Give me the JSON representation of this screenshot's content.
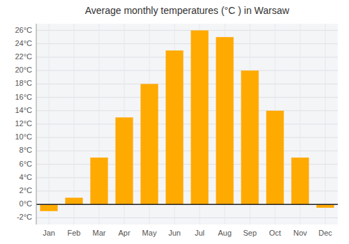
{
  "chart_data": {
    "type": "bar",
    "title": "Average monthly temperatures (°C ) in Warsaw",
    "categories": [
      "Jan",
      "Feb",
      "Mar",
      "Apr",
      "May",
      "Jun",
      "Jul",
      "Aug",
      "Sep",
      "Oct",
      "Nov",
      "Dec"
    ],
    "values": [
      -1.0,
      1.0,
      7.0,
      13.0,
      18.0,
      23.0,
      26.0,
      25.0,
      20.0,
      14.0,
      7.0,
      -0.5
    ],
    "color": "#FFAA00",
    "ylim": [
      -3,
      27
    ],
    "yticks": [
      {
        "value": -2,
        "label": "-2°C"
      },
      {
        "value": 0,
        "label": "0°C"
      },
      {
        "value": 2,
        "label": "2°C"
      },
      {
        "value": 4,
        "label": "4°C"
      },
      {
        "value": 6,
        "label": "6°C"
      },
      {
        "value": 8,
        "label": "8°C"
      },
      {
        "value": 10,
        "label": "10°C"
      },
      {
        "value": 12,
        "label": "12°C"
      },
      {
        "value": 14,
        "label": "14°C"
      },
      {
        "value": 16,
        "label": "16°C"
      },
      {
        "value": 18,
        "label": "18°C"
      },
      {
        "value": 20,
        "label": "20°C"
      },
      {
        "value": 22,
        "label": "22°C"
      },
      {
        "value": 24,
        "label": "24°C"
      },
      {
        "value": 26,
        "label": "26°C"
      }
    ],
    "grid": true
  }
}
